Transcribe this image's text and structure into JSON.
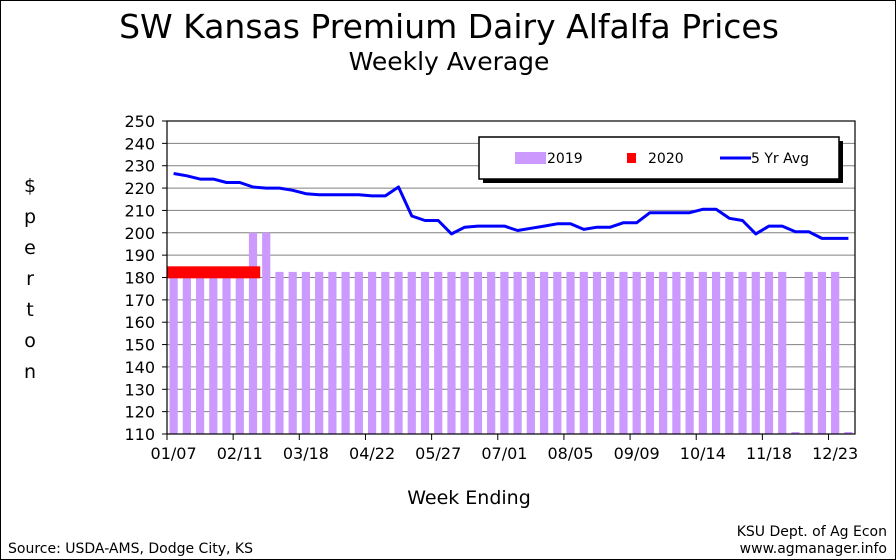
{
  "chart_data": {
    "type": "bar",
    "title": "SW Kansas Premium Dairy Alfalfa Prices",
    "subtitle": "Weekly Average",
    "ylabel": "$ per ton",
    "xlabel": "Week Ending",
    "ylim": [
      110,
      250
    ],
    "yticks": [
      110,
      120,
      130,
      140,
      150,
      160,
      170,
      180,
      190,
      200,
      210,
      220,
      230,
      240,
      250
    ],
    "xtick_labels": [
      "01/07",
      "02/11",
      "03/18",
      "04/22",
      "05/27",
      "07/01",
      "08/05",
      "09/09",
      "10/14",
      "11/18",
      "12/23"
    ],
    "grid": true,
    "legend_position": "top-right",
    "weeks": 52,
    "series": [
      {
        "name": "2019",
        "kind": "bar",
        "color": "#cc99ff",
        "values": [
          182.5,
          182.5,
          182.5,
          182.5,
          182.5,
          182.5,
          200,
          200,
          182.5,
          182.5,
          182.5,
          182.5,
          182.5,
          182.5,
          182.5,
          182.5,
          182.5,
          182.5,
          182.5,
          182.5,
          182.5,
          182.5,
          182.5,
          182.5,
          182.5,
          182.5,
          182.5,
          182.5,
          182.5,
          182.5,
          182.5,
          182.5,
          182.5,
          182.5,
          182.5,
          182.5,
          182.5,
          182.5,
          182.5,
          182.5,
          182.5,
          182.5,
          182.5,
          182.5,
          182.5,
          182.5,
          182.5,
          110,
          182.5,
          182.5,
          182.5,
          110
        ]
      },
      {
        "name": "2020",
        "kind": "bar",
        "color": "#ff0000",
        "values": [
          185,
          185,
          185,
          185,
          185,
          185,
          185
        ]
      },
      {
        "name": "5 Yr Avg",
        "kind": "line",
        "color": "#0000ff",
        "values": [
          226.5,
          225.5,
          224,
          224,
          222.5,
          222.5,
          220.5,
          220,
          220,
          219,
          217.5,
          217,
          217,
          217,
          217,
          216.5,
          216.5,
          220.5,
          207.5,
          205.5,
          205.5,
          199.5,
          202.5,
          203,
          203,
          203,
          201,
          202,
          203,
          204,
          204,
          201.5,
          202.5,
          202.5,
          204.5,
          204.5,
          209,
          209,
          209,
          209,
          210.5,
          210.5,
          206.5,
          205.5,
          199.5,
          203,
          203,
          200.5,
          200.5,
          197.5,
          197.5,
          197.5
        ]
      }
    ]
  },
  "footer": {
    "source": "Source: USDA-AMS, Dodge City, KS",
    "credit_line1": "KSU Dept. of Ag Econ",
    "credit_line2": "www.agmanager.info"
  }
}
